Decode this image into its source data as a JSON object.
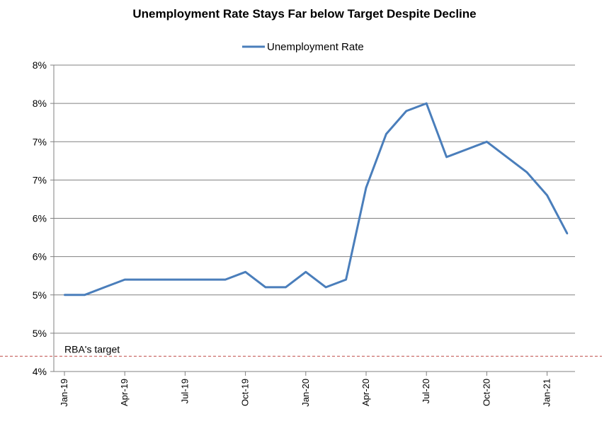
{
  "chart_data": {
    "type": "line",
    "title": "Unemployment Rate Stays Far below Target Despite Decline",
    "legend": {
      "position": "top",
      "entries": [
        "Unemployment Rate"
      ]
    },
    "x": [
      "Jan-19",
      "Feb-19",
      "Mar-19",
      "Apr-19",
      "May-19",
      "Jun-19",
      "Jul-19",
      "Aug-19",
      "Sep-19",
      "Oct-19",
      "Nov-19",
      "Dec-19",
      "Jan-20",
      "Feb-20",
      "Mar-20",
      "Apr-20",
      "May-20",
      "Jun-20",
      "Jul-20",
      "Aug-20",
      "Sep-20",
      "Oct-20",
      "Nov-20",
      "Dec-20",
      "Jan-21",
      "Feb-21"
    ],
    "x_tick_labels": [
      "Jan-19",
      "Apr-19",
      "Jul-19",
      "Oct-19",
      "Jan-20",
      "Apr-20",
      "Jul-20",
      "Oct-20",
      "Jan-21"
    ],
    "series": [
      {
        "name": "Unemployment Rate",
        "color": "#4a7ebb",
        "values": [
          5.0,
          5.0,
          5.1,
          5.2,
          5.2,
          5.2,
          5.2,
          5.2,
          5.2,
          5.3,
          5.1,
          5.1,
          5.3,
          5.1,
          5.2,
          6.4,
          7.1,
          7.4,
          7.5,
          6.8,
          6.9,
          7.0,
          6.8,
          6.6,
          6.3,
          5.8
        ]
      }
    ],
    "ylim": [
      4.0,
      8.0
    ],
    "y_ticks": [
      4.0,
      4.5,
      5.0,
      5.5,
      6.0,
      6.5,
      7.0,
      7.5,
      8.0
    ],
    "y_tick_labels": [
      "4%",
      "5%",
      "5%",
      "6%",
      "6%",
      "7%",
      "7%",
      "8%",
      "8%"
    ],
    "reference_line": {
      "label": "RBA's target",
      "value": 4.2,
      "color": "#c0504d",
      "style": "dashed"
    },
    "grid": {
      "horizontal": true,
      "vertical": false
    }
  }
}
